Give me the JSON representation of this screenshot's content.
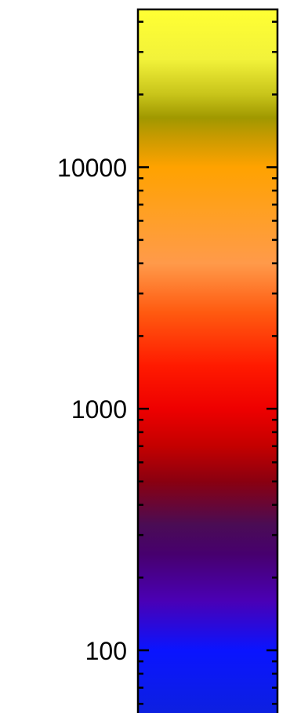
{
  "chart_data": {
    "type": "colorbar",
    "scale": "log",
    "orientation": "vertical",
    "range": [
      55,
      45000
    ],
    "tick_labels": [
      {
        "value": 100,
        "label": "100"
      },
      {
        "value": 1000,
        "label": "1000"
      },
      {
        "value": 10000,
        "label": "10000"
      }
    ],
    "minor_ticks": true,
    "colormap_stops": [
      {
        "value": 55,
        "color": "#0d20e0"
      },
      {
        "value": 100,
        "color": "#0a14ff"
      },
      {
        "value": 160,
        "color": "#4a00b5"
      },
      {
        "value": 250,
        "color": "#47006e"
      },
      {
        "value": 330,
        "color": "#4a0c55"
      },
      {
        "value": 500,
        "color": "#8a0010"
      },
      {
        "value": 700,
        "color": "#c40000"
      },
      {
        "value": 1000,
        "color": "#ee0000"
      },
      {
        "value": 1500,
        "color": "#ff1a00"
      },
      {
        "value": 2500,
        "color": "#ff5a10"
      },
      {
        "value": 4000,
        "color": "#ff9a4a"
      },
      {
        "value": 6000,
        "color": "#ff9f2a"
      },
      {
        "value": 10000,
        "color": "#ffa200"
      },
      {
        "value": 13500,
        "color": "#c59a00"
      },
      {
        "value": 16000,
        "color": "#a09800"
      },
      {
        "value": 20000,
        "color": "#c8c41a"
      },
      {
        "value": 28000,
        "color": "#f2f23a"
      },
      {
        "value": 45000,
        "color": "#ffff33"
      }
    ]
  }
}
